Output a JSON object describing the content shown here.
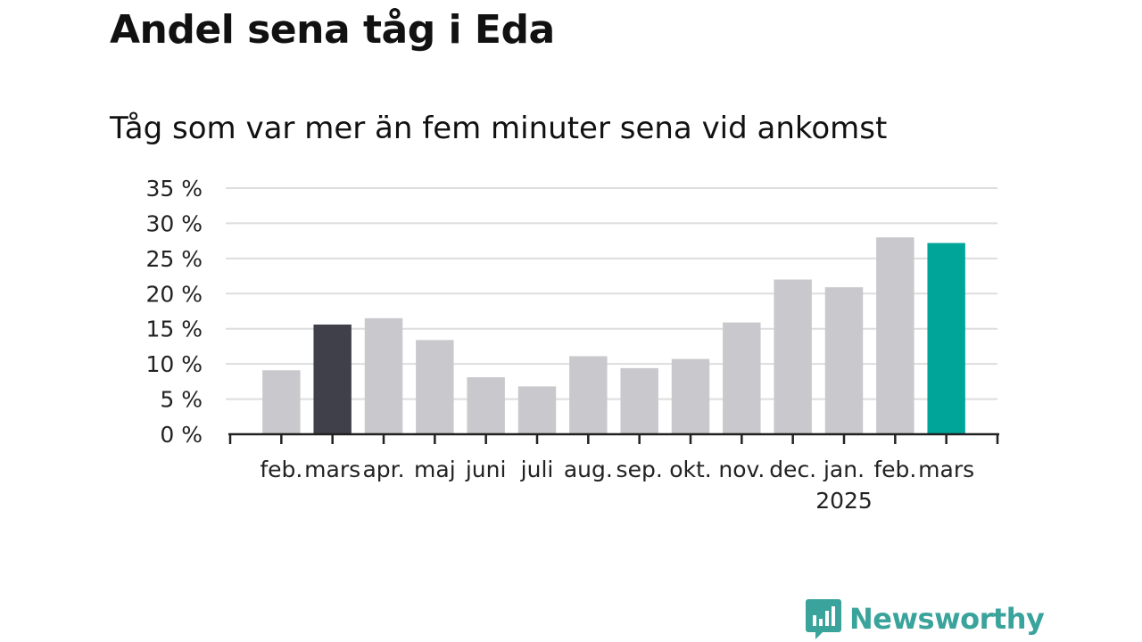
{
  "chart_data": {
    "type": "bar",
    "title": "Andel sena tåg i Eda",
    "subtitle": "Tåg som var mer än fem minuter sena vid ankomst",
    "categories": [
      "feb.",
      "mars",
      "apr.",
      "maj",
      "juni",
      "juli",
      "aug.",
      "sep.",
      "okt.",
      "nov.",
      "dec.",
      "jan.",
      "feb.",
      "mars"
    ],
    "year_label": "2025",
    "year_label_under_index": 11,
    "values": [
      9.1,
      15.6,
      16.5,
      13.4,
      8.1,
      6.8,
      11.1,
      9.4,
      10.7,
      15.9,
      22.0,
      20.9,
      28.0,
      27.2
    ],
    "bar_colors": [
      "#c8c8cd",
      "#40404b",
      "#c8c8cd",
      "#c8c8cd",
      "#c8c8cd",
      "#c8c8cd",
      "#c8c8cd",
      "#c8c8cd",
      "#c8c8cd",
      "#c8c8cd",
      "#c8c8cd",
      "#c8c8cd",
      "#c8c8cd",
      "#00a59a"
    ],
    "y_ticks": [
      "0 %",
      "5 %",
      "10 %",
      "15 %",
      "20 %",
      "25 %",
      "30 %",
      "35 %"
    ],
    "y_tick_values": [
      0,
      5,
      10,
      15,
      20,
      25,
      30,
      35
    ],
    "ylim": [
      0,
      35
    ],
    "grid": true,
    "gridline_color": "#dddddd",
    "axis_color": "#222222"
  },
  "branding": {
    "logo_text": "Newsworthy",
    "logo_color": "#3aa39b"
  }
}
